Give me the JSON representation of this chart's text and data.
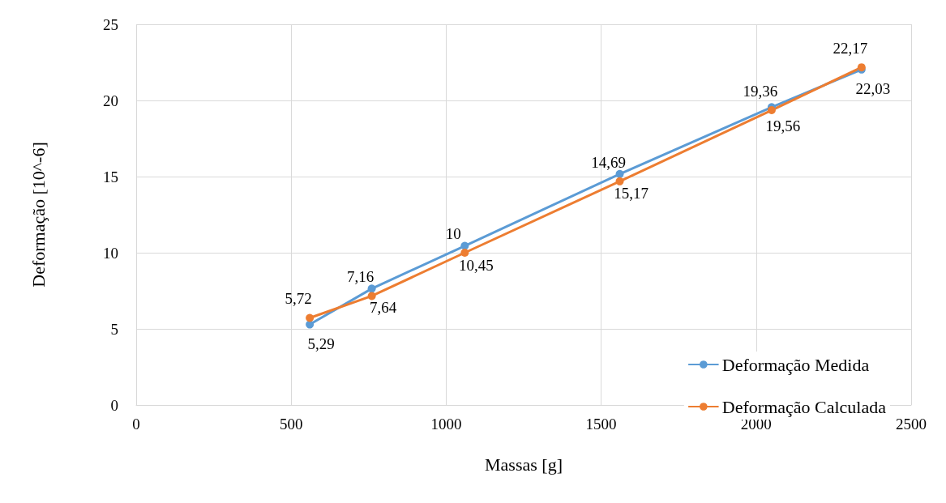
{
  "chart_data": {
    "type": "line",
    "xlabel": "Massas [g]",
    "ylabel": "Deformação [10^-6]",
    "x": [
      560,
      760,
      1060,
      1560,
      2050,
      2340
    ],
    "series": [
      {
        "name": "Deformação Medida",
        "color": "#5b9bd5",
        "values": [
          5.29,
          7.64,
          10.45,
          15.17,
          19.56,
          22.03
        ],
        "value_labels": [
          "5,29",
          "7,64",
          "10,45",
          "15,17",
          "19,56",
          "22,03"
        ]
      },
      {
        "name": "Deformação Calculada",
        "color": "#ed7d31",
        "values": [
          5.72,
          7.16,
          10,
          14.69,
          19.36,
          22.17
        ],
        "value_labels": [
          "5,72",
          "7,16",
          "10",
          "14,69",
          "19,36",
          "22,17"
        ]
      }
    ],
    "xlim": [
      0,
      2500
    ],
    "xticks": [
      0,
      500,
      1000,
      1500,
      2000,
      2500
    ],
    "ylim": [
      0,
      25
    ],
    "yticks": [
      0,
      5,
      10,
      15,
      20,
      25
    ],
    "grid": true,
    "legend": "bottom right",
    "marker": "circle",
    "line_style": "solid"
  }
}
